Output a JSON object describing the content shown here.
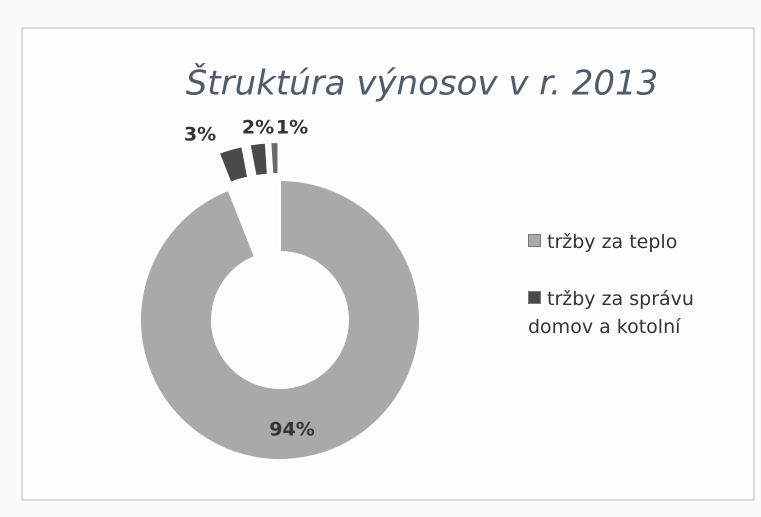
{
  "chart_data": {
    "type": "donut",
    "title": "Štruktúra výnosov v r. 2013",
    "categories": [
      "tržby za teplo",
      "tržby za správu domov a kotolní",
      null,
      null
    ],
    "values": [
      94,
      3,
      2,
      1
    ],
    "value_labels": [
      "94%",
      "3%",
      "2%",
      "1%"
    ],
    "colors": [
      "#a9a9a9",
      "#4a4a4a",
      "#4a4a4a",
      "#6a6a6a"
    ]
  }
}
